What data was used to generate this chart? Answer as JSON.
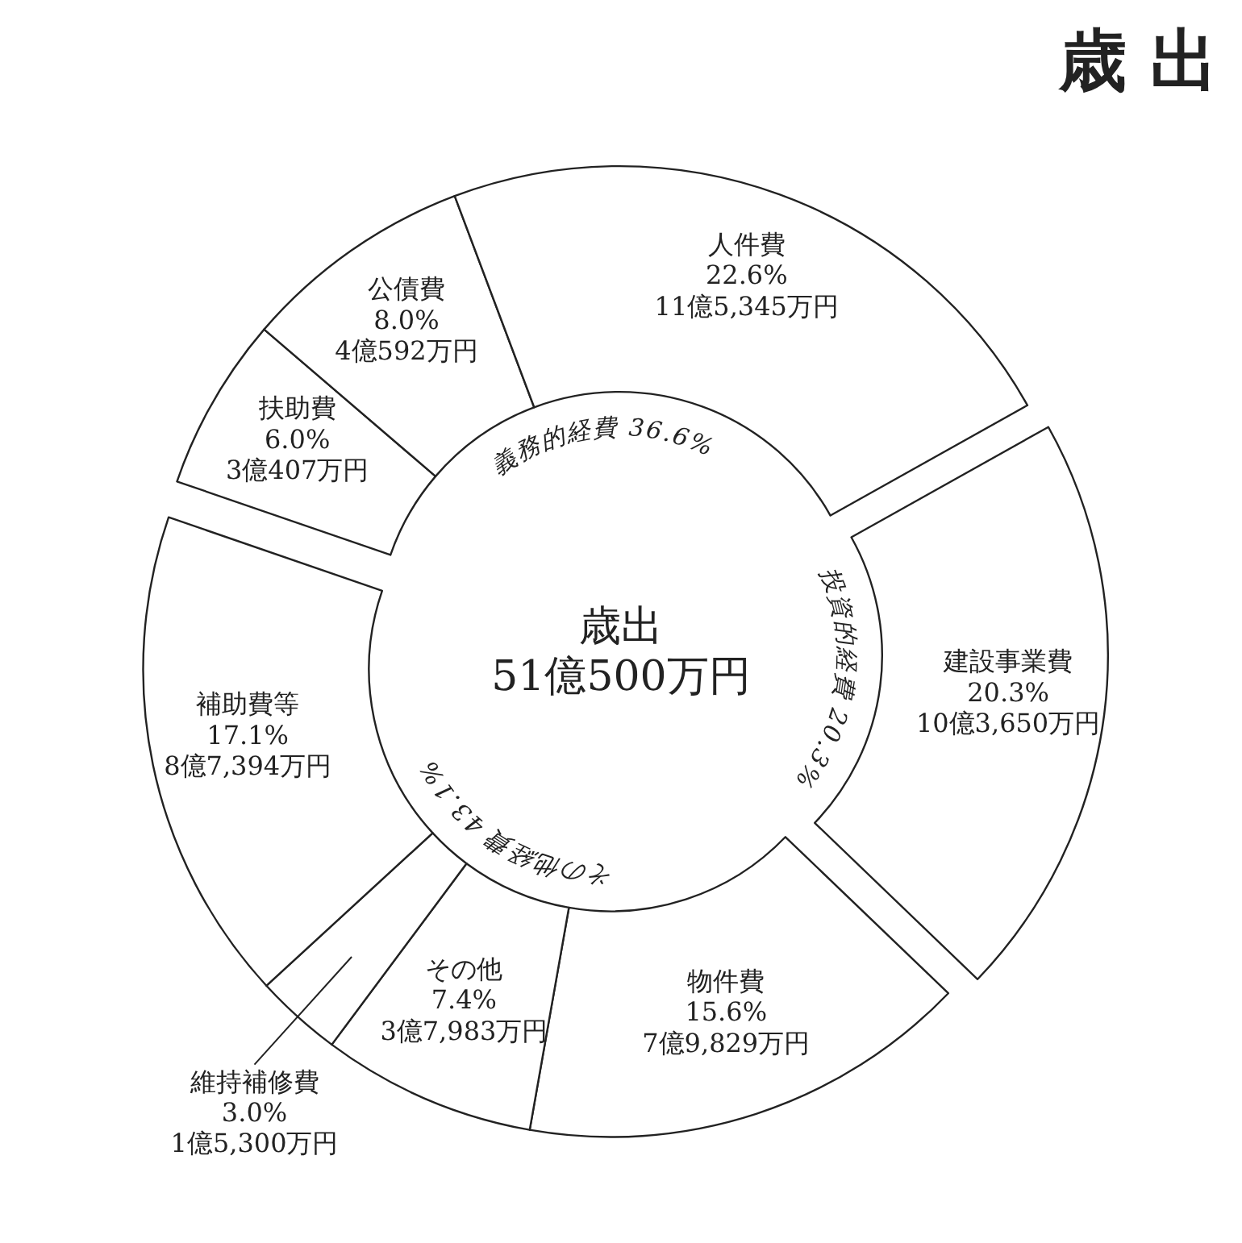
{
  "chart_data": {
    "type": "donut",
    "title": "歳 出",
    "categories": [
      "扶助費",
      "公債費",
      "人件費",
      "建設事業費",
      "物件費",
      "その他",
      "維持補修費",
      "補助費等"
    ],
    "values": [
      6.0,
      8.0,
      22.6,
      20.3,
      15.6,
      7.4,
      3.0,
      17.1
    ],
    "colors": [
      "#ffffff",
      "#ffffff",
      "#ffffff",
      "#ffffff",
      "#ffffff",
      "#ffffff",
      "#ffffff",
      "#ffffff"
    ],
    "value_labels": [
      "6.0%\n3億407万円",
      "8.0%\n4億592万円",
      "22.6%\n11億5,345万円",
      "20.3%\n10億3,650万円",
      "15.6%\n7億9,829万円",
      "7.4%\n3億7,983万円",
      "3.0%\n1億5,300万円",
      "17.1%\n8億7,394万円"
    ],
    "annotations": [
      "歳出\n51億500万円",
      "義務的経費 36.6%",
      "投資的経費 20.3%",
      "その他経費 43.1%"
    ]
  }
}
